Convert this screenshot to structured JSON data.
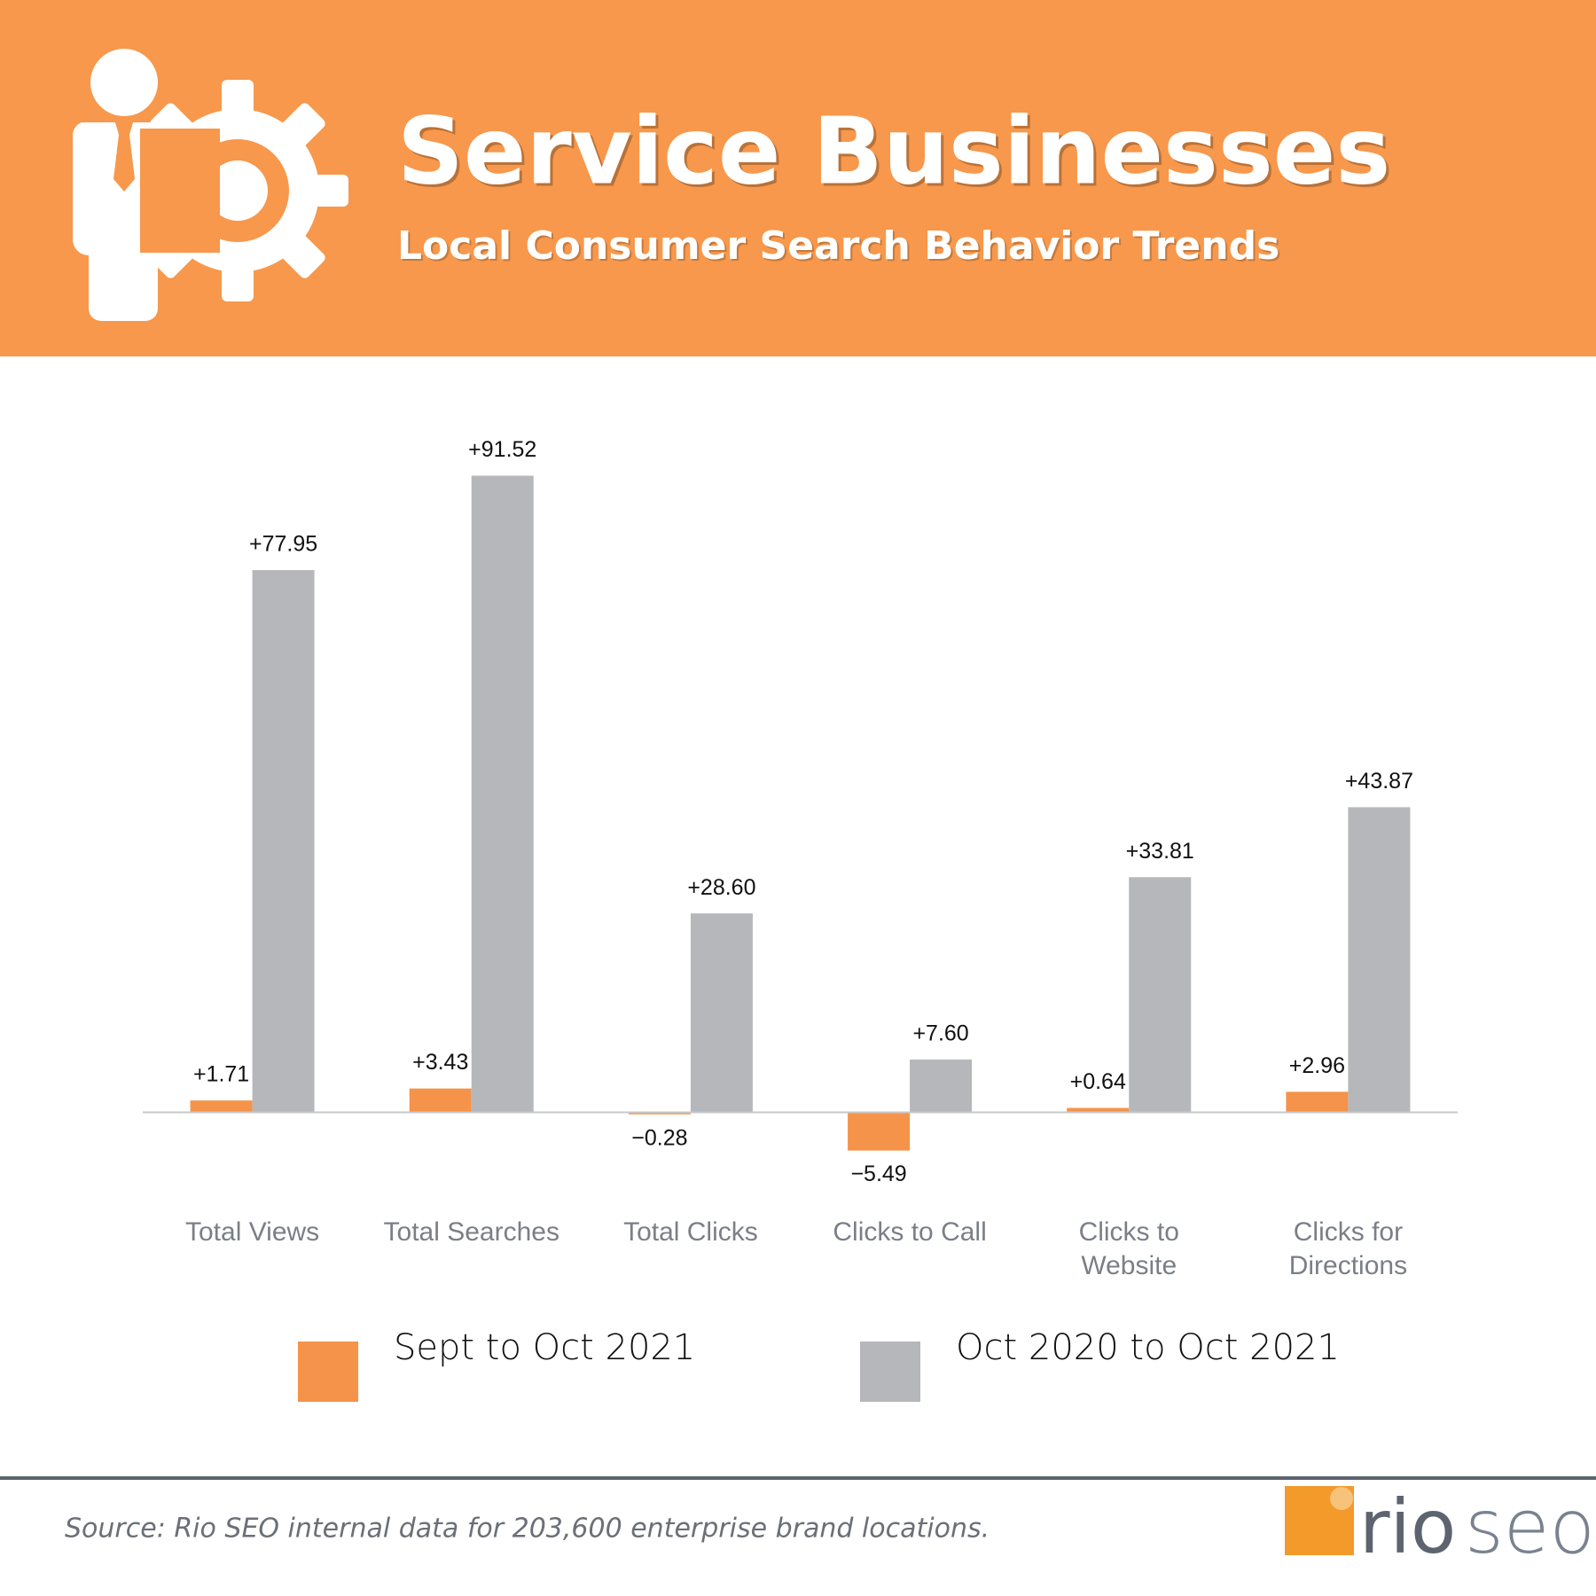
{
  "chart_data": {
    "type": "bar",
    "title": "Service Businesses",
    "subtitle": "Local Consumer Search Behavior Trends",
    "categories": [
      "Total Views",
      "Total Searches",
      "Total Clicks",
      "Clicks to Call",
      "Clicks to Website",
      "Clicks for Directions"
    ],
    "series": [
      {
        "name": "Sept to Oct 2021",
        "color": "#f5934a",
        "values": [
          1.71,
          3.43,
          -0.28,
          -5.49,
          0.64,
          2.96
        ],
        "value_labels": [
          "+1.71",
          "+3.43",
          "−0.28",
          "−5.49",
          "+0.64",
          "+2.96"
        ]
      },
      {
        "name": "Oct 2020 to Oct 2021",
        "color": "#b6b7bb",
        "values": [
          77.95,
          91.52,
          28.6,
          7.6,
          33.81,
          43.87
        ],
        "value_labels": [
          "+77.95",
          "+91.52",
          "+28.60",
          "+7.60",
          "+33.81",
          "+43.87"
        ]
      }
    ],
    "ylim": [
      -10,
      100
    ],
    "source": "Source: Rio SEO internal data for 203,600 enterprise brand locations.",
    "brand": [
      "rio",
      "seo"
    ]
  }
}
